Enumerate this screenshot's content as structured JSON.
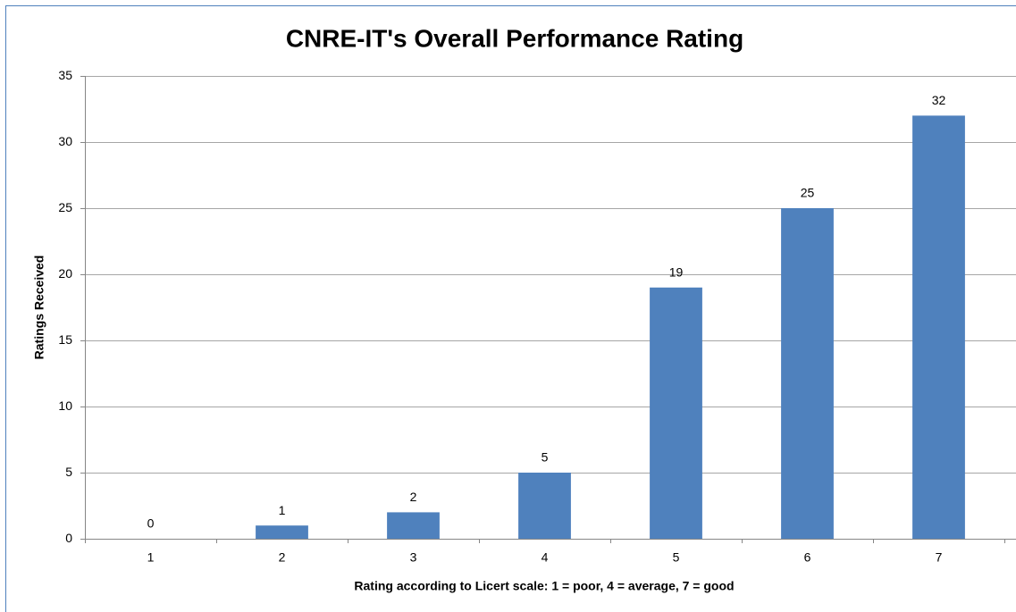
{
  "chart_data": {
    "type": "bar",
    "title": "CNRE-IT's Overall Performance Rating",
    "x_label": "Rating according to Licert scale: 1 = poor, 4 = average, 7 = good",
    "y_label": "Ratings Received",
    "categories": [
      "1",
      "2",
      "3",
      "4",
      "5",
      "6",
      "7"
    ],
    "values": [
      0,
      1,
      2,
      5,
      19,
      25,
      32
    ],
    "color": "#4f81bd",
    "ylim": [
      0,
      35
    ],
    "yticks": [
      0,
      5,
      10,
      15,
      20,
      25,
      30,
      35
    ],
    "grid": true,
    "data_labels": true
  }
}
